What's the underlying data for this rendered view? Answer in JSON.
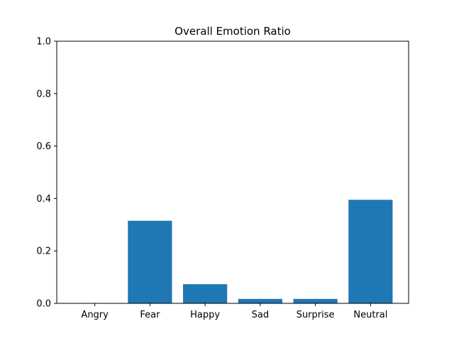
{
  "chart_data": {
    "type": "bar",
    "title": "Overall Emotion Ratio",
    "xlabel": "",
    "ylabel": "",
    "categories": [
      "Angry",
      "Fear",
      "Happy",
      "Sad",
      "Surprise",
      "Neutral"
    ],
    "values": [
      0.0,
      0.315,
      0.073,
      0.017,
      0.017,
      0.395
    ],
    "ylim": [
      0,
      1.0
    ],
    "yticks": [
      "0.0",
      "0.2",
      "0.4",
      "0.6",
      "0.8",
      "1.0"
    ],
    "grid": false,
    "legend": "none",
    "bar_color": "#1f77b4"
  }
}
